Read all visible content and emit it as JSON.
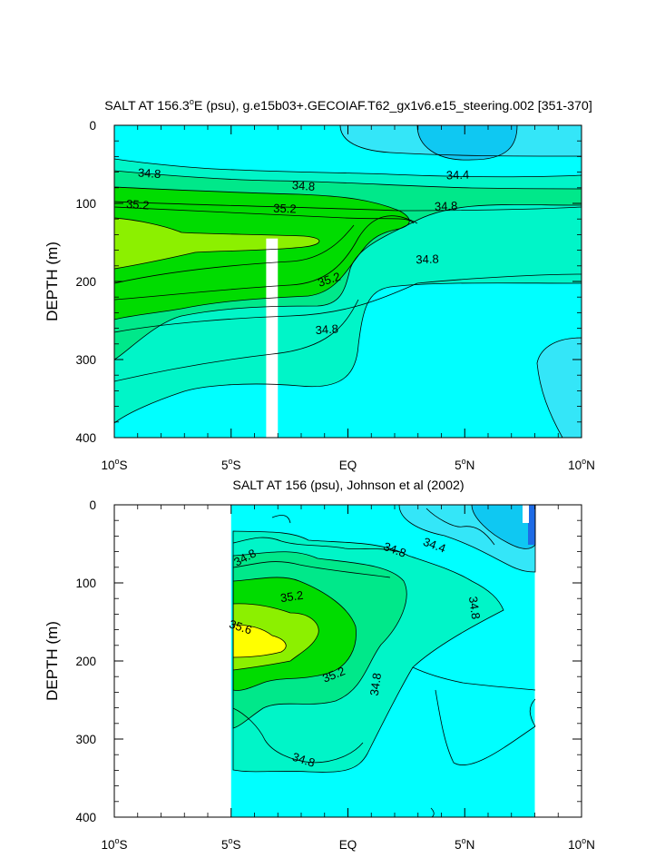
{
  "colors": {
    "c_lt_34_4": "#0fc8f2",
    "c_34_4_34_6": "#34e6f8",
    "c_34_6_34_8": "#00ffff",
    "c_34_8_35_0": "#00f5c8",
    "c_35_0_35_2": "#00e88a",
    "c_35_2_35_4": "#00dc00",
    "c_35_4_35_6": "#8cf000",
    "c_gt_35_6": "#ffff00",
    "deep_blue": "#1e6be6",
    "line": "#000000",
    "missing": "#ffffff"
  },
  "chart_data": [
    {
      "type": "contour",
      "title": "SALT AT 156.3°E (psu), g.e15b03+.GECOIAF.T62_gx1v6.e15_steering.002 [351-370]",
      "title_parts": {
        "pre": "SALT AT 156.3",
        "sup": "o",
        "post": "E (psu), g.e15b03+.GECOIAF.T62_gx1v6.e15_steering.002 [351-370]"
      },
      "ylabel": "DEPTH (m)",
      "xlabel": "",
      "xlim": [
        -10,
        10
      ],
      "ylim": [
        400,
        0
      ],
      "y_inverted": true,
      "xticks": [
        {
          "value": -10,
          "pre": "10",
          "sup": "o",
          "post": "S"
        },
        {
          "value": -5,
          "pre": "5",
          "sup": "o",
          "post": "S"
        },
        {
          "value": 0,
          "pre": "EQ",
          "sup": "",
          "post": ""
        },
        {
          "value": 5,
          "pre": "5",
          "sup": "o",
          "post": "N"
        },
        {
          "value": 10,
          "pre": "10",
          "sup": "o",
          "post": "N"
        }
      ],
      "yticks": [
        0,
        100,
        200,
        300,
        400
      ],
      "contour_levels": [
        34.4,
        34.6,
        34.8,
        35.0,
        35.2,
        35.4,
        35.6
      ],
      "missing_region": {
        "lon": [
          -3.5,
          -3.0
        ],
        "depth": [
          145,
          400
        ]
      },
      "salinity_maxima": [
        {
          "lon": -7.5,
          "depth": 160,
          "value": 35.5
        }
      ],
      "labels": [
        {
          "text": "34.8",
          "lon": -8.5,
          "depth": 62
        },
        {
          "text": "34.8",
          "lon": -1.9,
          "depth": 78
        },
        {
          "text": "34.4",
          "lon": 4.7,
          "depth": 64
        },
        {
          "text": "35.2",
          "lon": -9.0,
          "depth": 102
        },
        {
          "text": "35.2",
          "lon": -2.7,
          "depth": 107
        },
        {
          "text": "34.8",
          "lon": 4.2,
          "depth": 104
        },
        {
          "text": "34.8",
          "lon": 3.4,
          "depth": 172
        },
        {
          "text": "35.2",
          "lon": -0.8,
          "depth": 198
        },
        {
          "text": "34.8",
          "lon": -0.9,
          "depth": 262
        }
      ]
    },
    {
      "type": "contour",
      "title": "SALT AT 156 (psu), Johnson et al (2002)",
      "ylabel": "DEPTH (m)",
      "xlabel": "",
      "xlim": [
        -10,
        10
      ],
      "ylim": [
        400,
        0
      ],
      "y_inverted": true,
      "data_lon_range": [
        -5,
        8
      ],
      "xticks": [
        {
          "value": -10,
          "pre": "10",
          "sup": "o",
          "post": "S"
        },
        {
          "value": -5,
          "pre": "5",
          "sup": "o",
          "post": "S"
        },
        {
          "value": 0,
          "pre": "EQ",
          "sup": "",
          "post": ""
        },
        {
          "value": 5,
          "pre": "5",
          "sup": "o",
          "post": "N"
        },
        {
          "value": 10,
          "pre": "10",
          "sup": "o",
          "post": "N"
        }
      ],
      "yticks": [
        0,
        100,
        200,
        300,
        400
      ],
      "contour_levels": [
        34.4,
        34.6,
        34.8,
        35.0,
        35.2,
        35.4,
        35.6
      ],
      "salinity_maxima": [
        {
          "lon": -4.5,
          "depth": 175,
          "value": 35.7
        }
      ],
      "labels": [
        {
          "text": "34.8",
          "lon": -4.4,
          "depth": 68
        },
        {
          "text": "34.8",
          "lon": 2.0,
          "depth": 58
        },
        {
          "text": "34.4",
          "lon": 3.7,
          "depth": 52
        },
        {
          "text": "35.2",
          "lon": -2.4,
          "depth": 118
        },
        {
          "text": "34.8",
          "lon": 5.4,
          "depth": 132
        },
        {
          "text": "35.6",
          "lon": -4.6,
          "depth": 157
        },
        {
          "text": "35.2",
          "lon": -0.6,
          "depth": 218
        },
        {
          "text": "34.8",
          "lon": 1.2,
          "depth": 230
        },
        {
          "text": "34.8",
          "lon": -1.9,
          "depth": 327
        }
      ]
    }
  ]
}
